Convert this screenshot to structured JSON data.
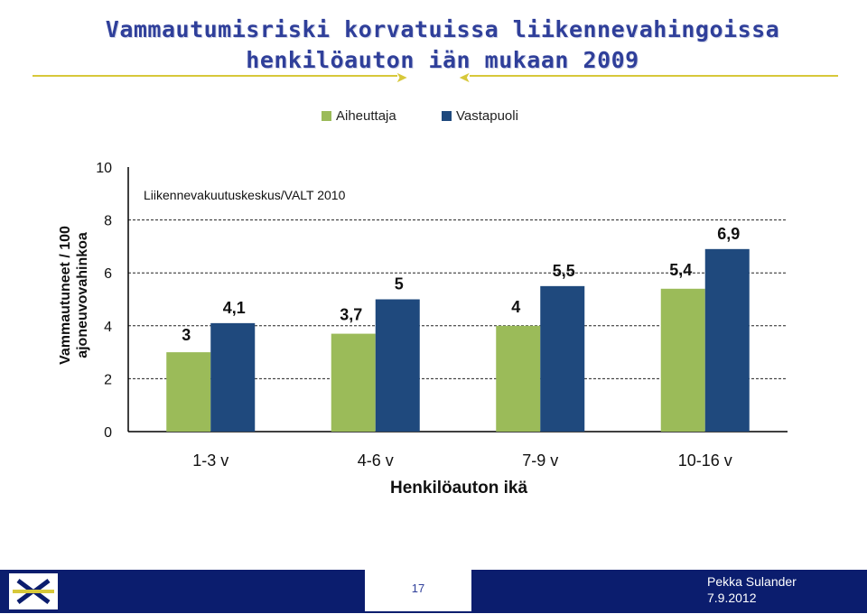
{
  "title": {
    "line1": "Vammautumisriski korvatuissa liikennevahingoissa",
    "line2": "henkilöauton iän mukaan 2009"
  },
  "colors": {
    "aiheuttaja": "#9bbb59",
    "vastapuoli": "#1f497d",
    "title": "#2f3f9a",
    "footer": "#0b1d6e",
    "accent": "#d7c83a"
  },
  "chart_data": {
    "type": "bar",
    "categories": [
      "1-3 v",
      "4-6 v",
      "7-9 v",
      "10-16 v"
    ],
    "series": [
      {
        "name": "Aiheuttaja",
        "values": [
          3,
          3.7,
          4,
          5.4
        ],
        "labels": [
          "3",
          "3,7",
          "4",
          "5,4"
        ]
      },
      {
        "name": "Vastapuoli",
        "values": [
          4.1,
          5,
          5.5,
          6.9
        ],
        "labels": [
          "4,1",
          "5",
          "5,5",
          "6,9"
        ]
      }
    ],
    "ylabel": "Vammautuneet / 100 ajoneuvovahinkoa",
    "xlabel": "Henkilöauton ikä",
    "ylim": [
      0,
      10
    ],
    "yticks": [
      0,
      2,
      4,
      6,
      8,
      10
    ],
    "grid": true,
    "legend_position": "top",
    "source_note": "Liikennevakuutuskeskus/VALT 2010"
  },
  "footer": {
    "page_number": "17",
    "author": "Pekka Sulander",
    "date": "7.9.2012"
  }
}
